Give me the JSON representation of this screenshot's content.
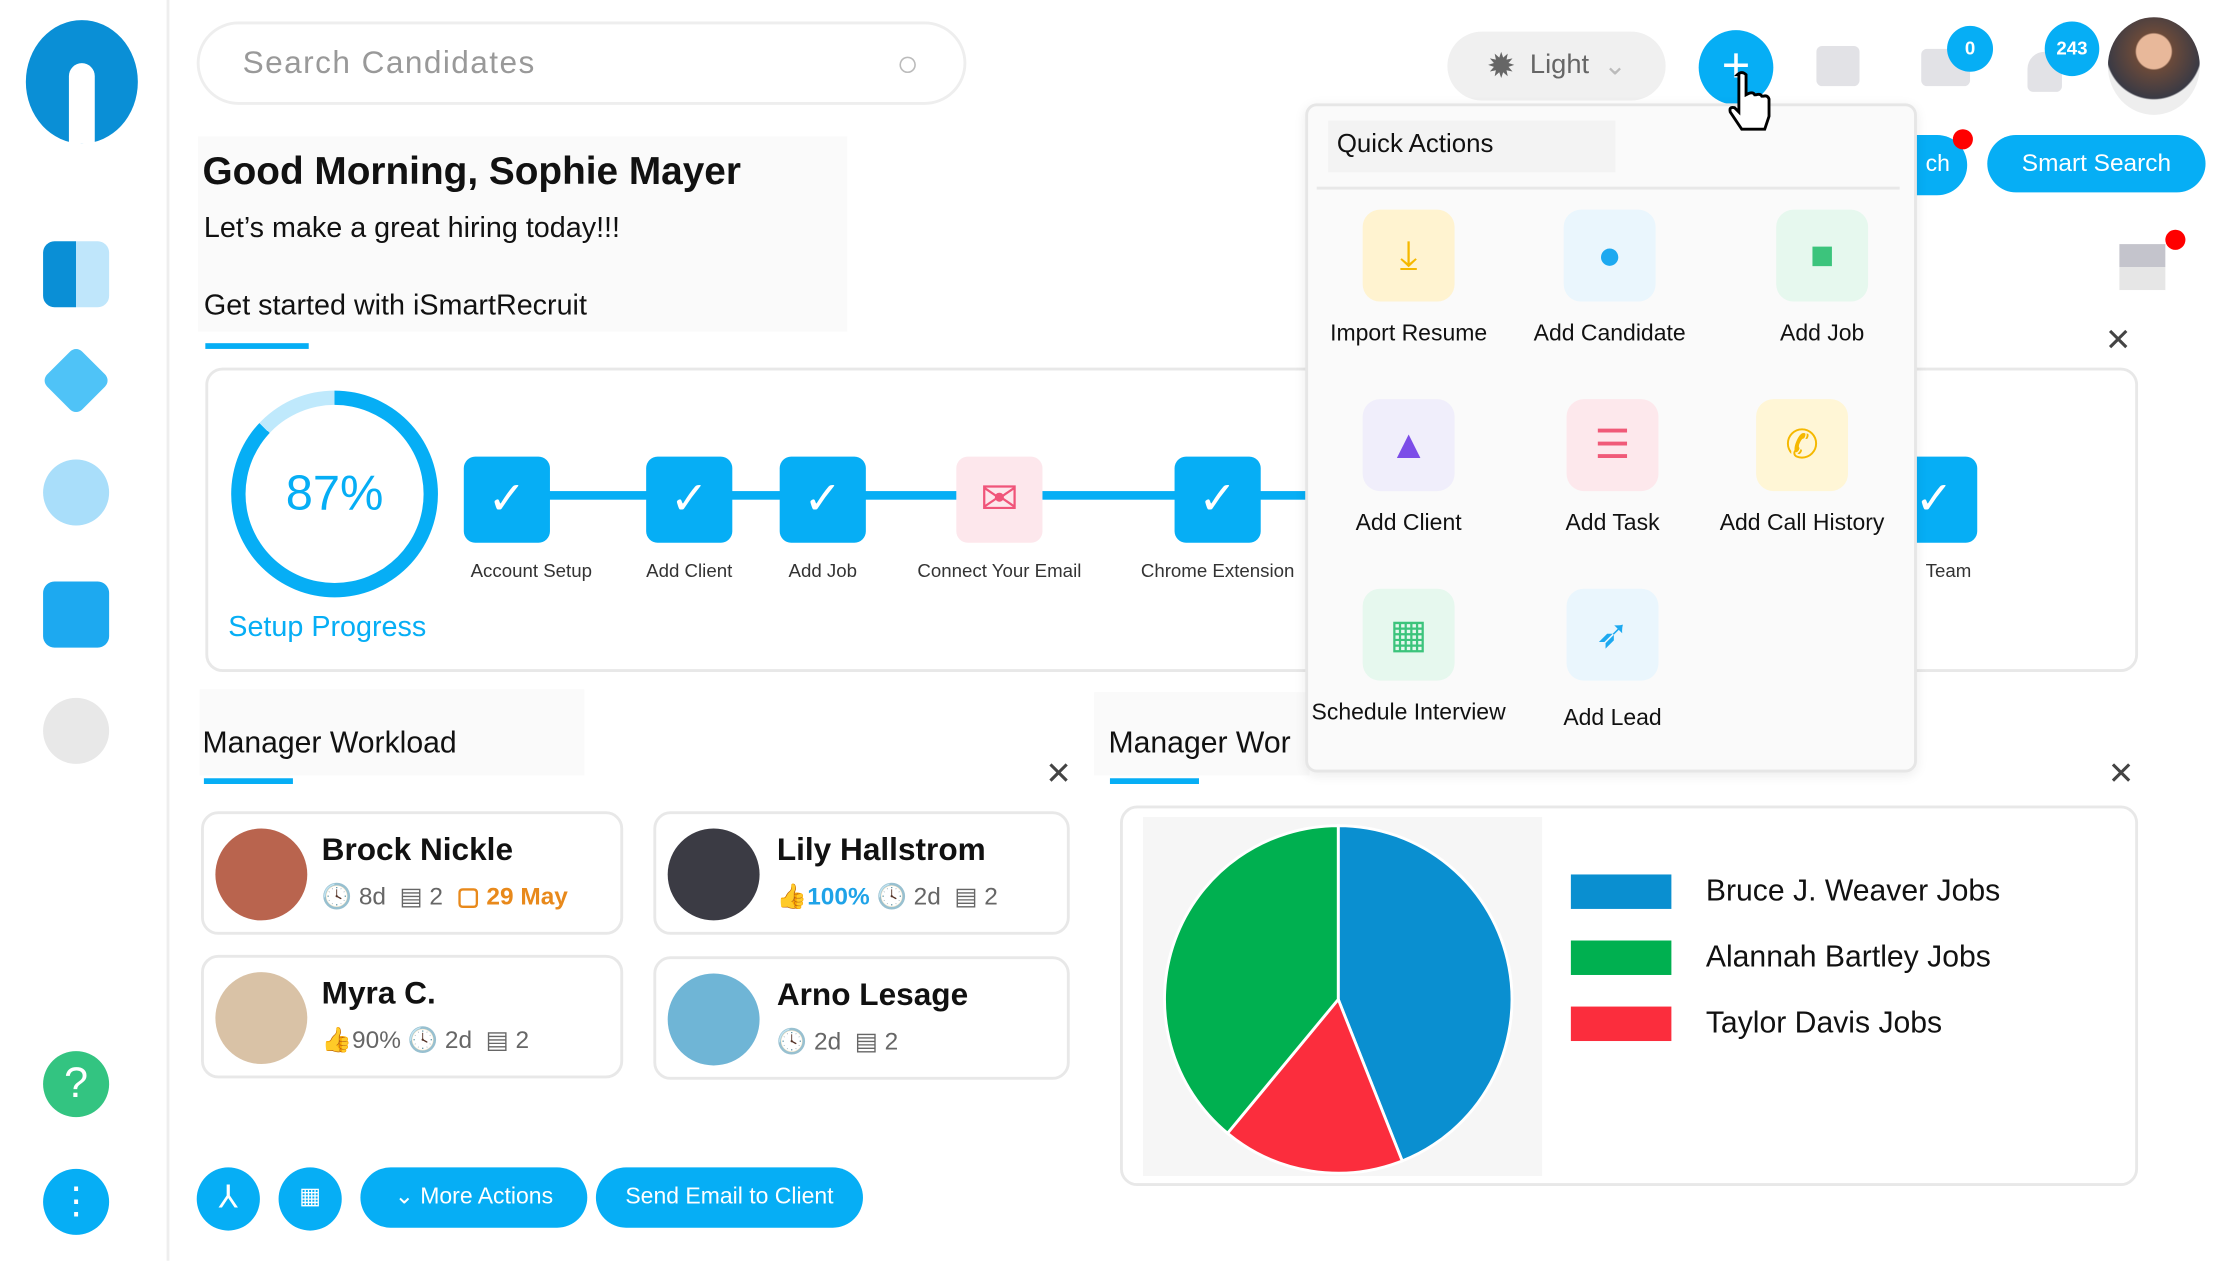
{
  "search": {
    "placeholder": "Search Candidates"
  },
  "header": {
    "theme_label": "Light",
    "mail_count": "0",
    "notification_count": "243",
    "smart_search_label": "Smart Search",
    "partial_button_label": "ch"
  },
  "greeting": {
    "title": "Good Morning, Sophie Mayer",
    "subtitle": "Let’s make a great hiring today!!!",
    "get_started": "Get started with iSmartRecruit"
  },
  "setup": {
    "progress_percent": 87,
    "progress_text": "87%",
    "label": "Setup Progress",
    "steps": [
      {
        "label": "Account Setup",
        "done": true
      },
      {
        "label": "Add Client",
        "done": true
      },
      {
        "label": "Add Job",
        "done": true
      },
      {
        "label": "Connect Your Email",
        "done": false
      },
      {
        "label": "Chrome Extension",
        "done": true
      },
      {
        "label": "Team",
        "done": true
      }
    ]
  },
  "workload": {
    "title": "Manager Workload",
    "title2": "Manager Wor",
    "managers": [
      {
        "name": "Brock Nickle",
        "time": "8d",
        "comments": "2",
        "date": "29 May"
      },
      {
        "name": "Lily Hallstrom",
        "percent": "100%",
        "time": "2d",
        "comments": "2"
      },
      {
        "name": "Myra C.",
        "percent": "90%",
        "time": "2d",
        "comments": "2"
      },
      {
        "name": "Arno Lesage",
        "time": "2d",
        "comments": "2"
      }
    ]
  },
  "actions": {
    "more": "More Actions",
    "send_email": "Send Email to Client"
  },
  "quick_actions": {
    "title": "Quick Actions",
    "items": [
      "Import Resume",
      "Add Candidate",
      "Add Job",
      "Add Client",
      "Add Task",
      "Add Call History",
      "Schedule Interview",
      "Add Lead"
    ]
  },
  "chart_data": {
    "type": "pie",
    "title": "",
    "series": [
      {
        "name": "Bruce J. Weaver Jobs",
        "value": 44,
        "color": "#0a8fd0"
      },
      {
        "name": "Alannah Bartley Jobs",
        "value": 39,
        "color": "#00b050"
      },
      {
        "name": "Taylor Davis Jobs",
        "value": 17,
        "color": "#fb2d3d"
      }
    ],
    "order": [
      0,
      2,
      1
    ],
    "legend": "right"
  },
  "colors": {
    "accent": "#06aef5"
  }
}
